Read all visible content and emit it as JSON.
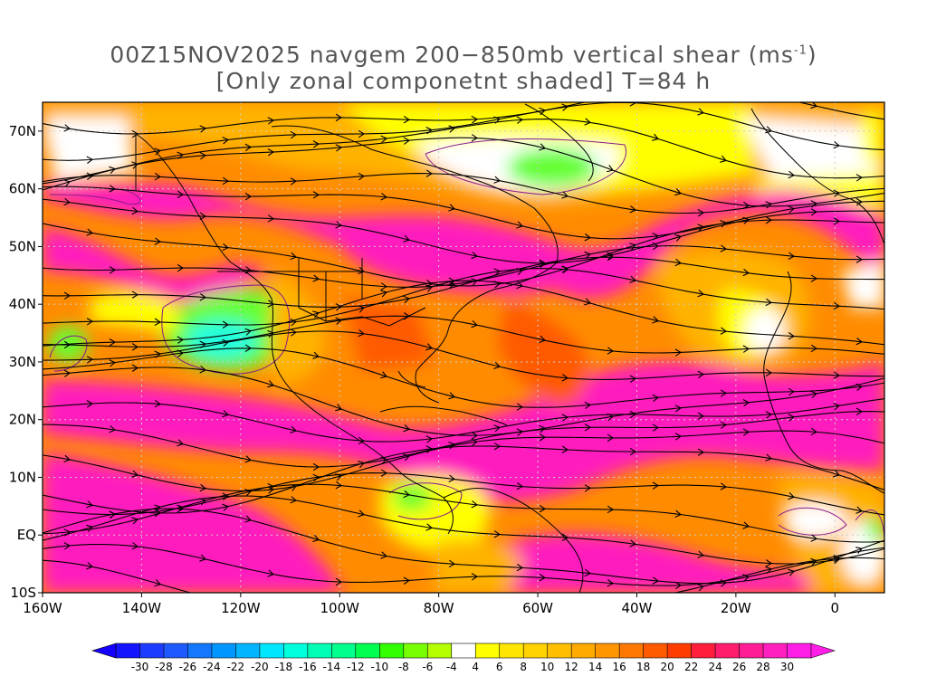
{
  "title": {
    "line1_prefix": "00Z15NOV2025 navgem 200−850mb vertical shear (ms",
    "line1_sup": "-1",
    "line1_suffix": ")",
    "line2": "[Only zonal componetnt shaded] T=84 h"
  },
  "map": {
    "lon_range": [
      -160,
      10
    ],
    "lat_range": [
      -10,
      75
    ],
    "lat_ticks": [
      {
        "value": 70,
        "label": "70N"
      },
      {
        "value": 60,
        "label": "60N"
      },
      {
        "value": 50,
        "label": "50N"
      },
      {
        "value": 40,
        "label": "40N"
      },
      {
        "value": 30,
        "label": "30N"
      },
      {
        "value": 20,
        "label": "20N"
      },
      {
        "value": 10,
        "label": "10N"
      },
      {
        "value": 0,
        "label": "EQ"
      },
      {
        "value": -10,
        "label": "10S"
      }
    ],
    "lon_ticks": [
      {
        "value": -160,
        "label": "160W"
      },
      {
        "value": -140,
        "label": "140W"
      },
      {
        "value": -120,
        "label": "120W"
      },
      {
        "value": -100,
        "label": "100W"
      },
      {
        "value": -80,
        "label": "80W"
      },
      {
        "value": -60,
        "label": "60W"
      },
      {
        "value": -40,
        "label": "40W"
      },
      {
        "value": -20,
        "label": "20W"
      },
      {
        "value": 0,
        "label": "0"
      }
    ],
    "colors": {
      "magenta": "#ff1fbe",
      "pink_red": "#ff1a6e",
      "red": "#ff2a2a",
      "orange_red": "#ff5a00",
      "orange": "#ff8c00",
      "light_orange": "#ffb300",
      "yellow": "#ffff00",
      "green": "#66ff33",
      "cyan": "#22ffdd",
      "contour": "#8a1a8a",
      "coast": "#000000",
      "grid": "#cccccc"
    }
  },
  "colorbar": {
    "labels": [
      "-30",
      "-28",
      "-26",
      "-24",
      "-22",
      "-20",
      "-18",
      "-16",
      "-14",
      "-12",
      "-10",
      "-8",
      "-6",
      "-4",
      "4",
      "6",
      "8",
      "10",
      "12",
      "14",
      "16",
      "18",
      "20",
      "22",
      "24",
      "26",
      "28",
      "30"
    ],
    "colors": [
      "#1414ff",
      "#1e3cff",
      "#1e5aff",
      "#1478ff",
      "#0096ff",
      "#00b4ff",
      "#00e6ff",
      "#00ffdc",
      "#00ffb4",
      "#00ff8c",
      "#00ff50",
      "#32ff00",
      "#78ff00",
      "#b4ff00",
      "#ffffff",
      "#ffff00",
      "#ffe600",
      "#ffd200",
      "#ffbe00",
      "#ffaa00",
      "#ff9600",
      "#ff7800",
      "#ff5a00",
      "#ff3c00",
      "#ff1e3c",
      "#ff1e6e",
      "#ff1e96",
      "#ff1ebe",
      "#ff1ee6"
    ]
  }
}
